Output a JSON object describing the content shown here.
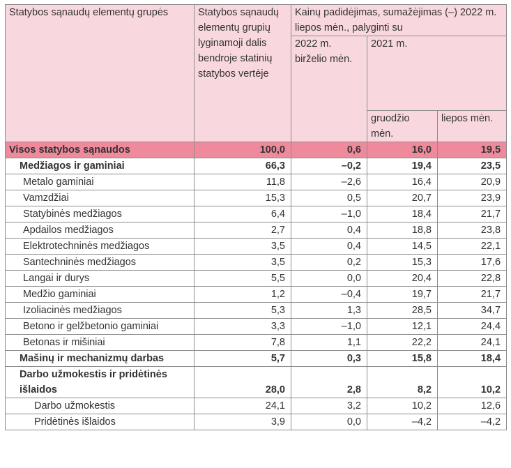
{
  "header": {
    "group_label": "Statybos sąnaudų elementų grupės",
    "share_label": "Statybos sąnaudų elementų grupių lyginamoji dalis bendroje statinių statybos vertėje",
    "change_label": "Kainų padidėjimas, sumažėjimas (–) 2022 m. liepos mėn., palyginti su",
    "june_2022": "2022 m. birželio mėn.",
    "year_2021": "2021 m.",
    "december": "gruodžio mėn.",
    "july": "liepos mėn."
  },
  "rows": [
    {
      "type": "total",
      "label": "Visos statybos sąnaudos",
      "share": "100,0",
      "june": "0,6",
      "dec": "16,0",
      "jul": "19,5"
    },
    {
      "type": "group",
      "label": "Medžiagos ir gaminiai",
      "share": "66,3",
      "june": "–0,2",
      "dec": "19,4",
      "jul": "23,5"
    },
    {
      "type": "item",
      "label": "Metalo gaminiai",
      "share": "11,8",
      "june": "–2,6",
      "dec": "16,4",
      "jul": "20,9"
    },
    {
      "type": "item",
      "label": "Vamzdžiai",
      "share": "15,3",
      "june": "0,5",
      "dec": "20,7",
      "jul": "23,9"
    },
    {
      "type": "item",
      "label": "Statybinės medžiagos",
      "share": "6,4",
      "june": "–1,0",
      "dec": "18,4",
      "jul": "21,7"
    },
    {
      "type": "item",
      "label": "Apdailos medžiagos",
      "share": "2,7",
      "june": "0,4",
      "dec": "18,8",
      "jul": "23,8"
    },
    {
      "type": "item",
      "label": "Elektrotechninės medžiagos",
      "share": "3,5",
      "june": "0,4",
      "dec": "14,5",
      "jul": "22,1"
    },
    {
      "type": "item",
      "label": "Santechninės medžiagos",
      "share": "3,5",
      "june": "0,2",
      "dec": "15,3",
      "jul": "17,6"
    },
    {
      "type": "item",
      "label": "Langai ir durys",
      "share": "5,5",
      "june": "0,0",
      "dec": "20,4",
      "jul": "22,8"
    },
    {
      "type": "item",
      "label": "Medžio gaminiai",
      "share": "1,2",
      "june": "–0,4",
      "dec": "19,7",
      "jul": "21,7"
    },
    {
      "type": "item",
      "label": "Izoliacinės medžiagos",
      "share": "5,3",
      "june": "1,3",
      "dec": "28,5",
      "jul": "34,7"
    },
    {
      "type": "item",
      "label": "Betono ir gelžbetonio gaminiai",
      "share": "3,3",
      "june": "–1,0",
      "dec": "12,1",
      "jul": "24,4"
    },
    {
      "type": "item",
      "label": "Betonas ir mišiniai",
      "share": "7,8",
      "june": "1,1",
      "dec": "22,2",
      "jul": "24,1"
    },
    {
      "type": "group tall",
      "label": "Mašinų ir mechanizmų darbas",
      "share": "5,7",
      "june": "0,3",
      "dec": "15,8",
      "jul": "18,4"
    },
    {
      "type": "group tall",
      "label": "Darbo užmokestis ir pridėtinės išlaidos",
      "share": "28,0",
      "june": "2,8",
      "dec": "8,2",
      "jul": "10,2"
    },
    {
      "type": "sub",
      "label": "Darbo užmokestis",
      "share": "24,1",
      "june": "3,2",
      "dec": "10,2",
      "jul": "12,6"
    },
    {
      "type": "sub",
      "label": "Pridėtinės išlaidos",
      "share": "3,9",
      "june": "0,0",
      "dec": "–4,2",
      "jul": "–4,2"
    }
  ]
}
